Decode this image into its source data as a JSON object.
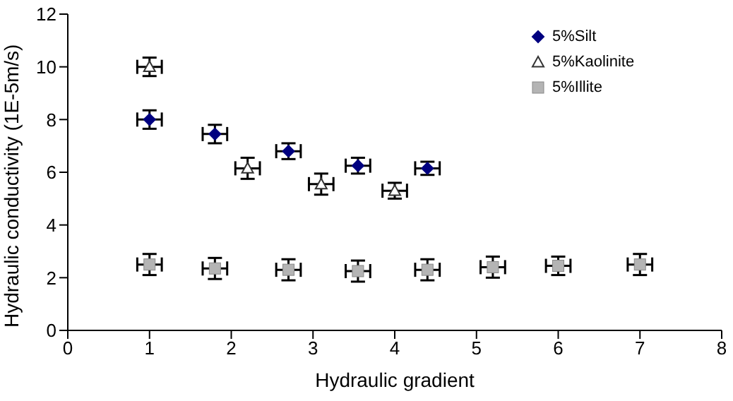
{
  "chart_data": {
    "type": "scatter",
    "xlabel": "Hydraulic gradient",
    "ylabel": "Hydraulic conductivity (1E-5m/s)",
    "xlim": [
      0,
      8
    ],
    "xticks": [
      0,
      1,
      2,
      3,
      4,
      5,
      6,
      7,
      8
    ],
    "ylim": [
      0,
      12
    ],
    "yticks": [
      0,
      2,
      4,
      6,
      8,
      10,
      12
    ],
    "grid": false,
    "legend": "top right",
    "series": [
      {
        "name": "5%Silt",
        "color": "#000080",
        "marker": "diamond",
        "x": [
          1,
          1.8,
          2.7,
          3.55,
          4.4
        ],
        "values": [
          8.0,
          7.45,
          6.8,
          6.25,
          6.15
        ],
        "errors": [
          0.35,
          0.35,
          0.3,
          0.3,
          0.25
        ],
        "xerrors": [
          0.15,
          0.15,
          0.15,
          0.15,
          0.15
        ]
      },
      {
        "name": "5%Kaolinite",
        "color": "#ffffff",
        "marker": "triangle",
        "x": [
          1,
          2.2,
          3.1,
          4.0
        ],
        "values": [
          10.0,
          6.15,
          5.55,
          5.3
        ],
        "errors": [
          0.35,
          0.4,
          0.4,
          0.3
        ],
        "xerrors": [
          0.15,
          0.15,
          0.15,
          0.15
        ]
      },
      {
        "name": "5%Illite",
        "color": "#b4b4b4",
        "marker": "square",
        "x": [
          1,
          1.8,
          2.7,
          3.55,
          4.4,
          5.2,
          6.0,
          7.0
        ],
        "values": [
          2.5,
          2.35,
          2.3,
          2.25,
          2.3,
          2.4,
          2.45,
          2.5
        ],
        "errors": [
          0.4,
          0.4,
          0.4,
          0.4,
          0.4,
          0.4,
          0.35,
          0.4
        ],
        "xerrors": [
          0.15,
          0.15,
          0.15,
          0.15,
          0.15,
          0.15,
          0.15,
          0.15
        ]
      }
    ]
  }
}
